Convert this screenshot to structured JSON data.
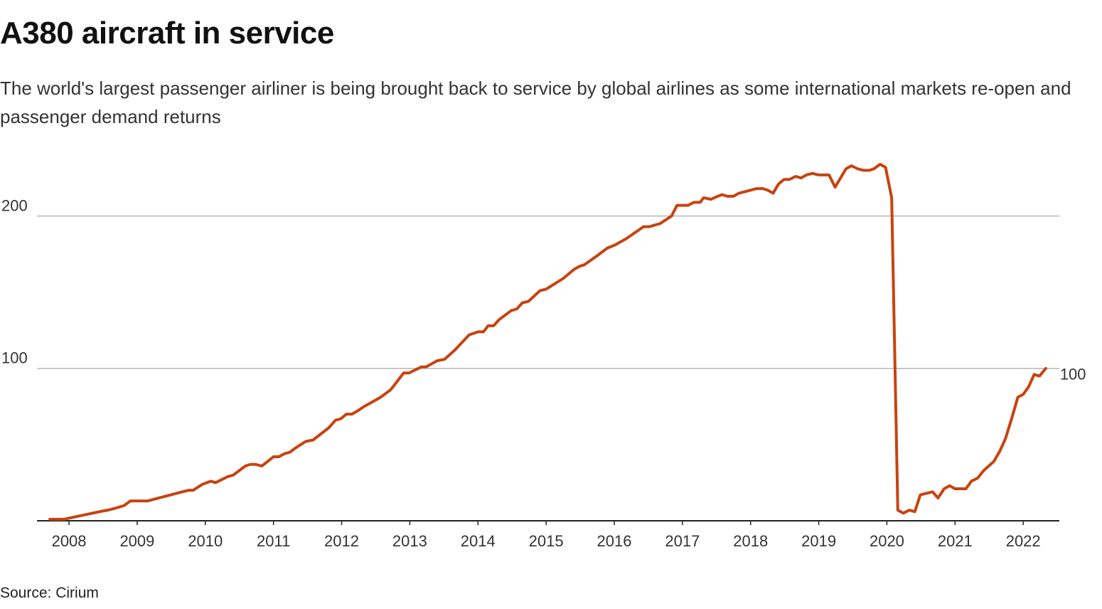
{
  "chart_data": {
    "type": "line",
    "title": "A380 aircraft in service",
    "subtitle": "The world's largest passenger airliner is being brought back to service by global airlines as some international markets re-open and passenger demand returns",
    "source": "Source: Cirium",
    "color": "#c8420f",
    "grid": true,
    "xlim": [
      2007.53,
      2022.53
    ],
    "xticks": [
      2008,
      2009,
      2010,
      2011,
      2012,
      2013,
      2014,
      2015,
      2016,
      2017,
      2018,
      2019,
      2020,
      2021,
      2022
    ],
    "ylim": [
      0,
      240
    ],
    "yticks": [
      100,
      200
    ],
    "x": [
      2007.72,
      2007.93,
      2008.03,
      2008.24,
      2008.45,
      2008.57,
      2008.66,
      2008.81,
      2008.9,
      2009.15,
      2009.75,
      2009.82,
      2009.96,
      2010.08,
      2010.15,
      2010.33,
      2010.41,
      2010.59,
      2010.66,
      2010.74,
      2010.83,
      2011.0,
      2011.08,
      2011.16,
      2011.24,
      2011.33,
      2011.47,
      2011.58,
      2011.81,
      2011.91,
      2011.99,
      2012.07,
      2012.15,
      2012.23,
      2012.33,
      2012.57,
      2012.72,
      2012.91,
      2012.99,
      2013.17,
      2013.24,
      2013.4,
      2013.51,
      2013.66,
      2013.87,
      2014.0,
      2014.08,
      2014.15,
      2014.23,
      2014.31,
      2014.49,
      2014.57,
      2014.65,
      2014.74,
      2014.91,
      2015.0,
      2015.25,
      2015.41,
      2015.49,
      2015.56,
      2015.75,
      2015.9,
      2016.01,
      2016.17,
      2016.43,
      2016.51,
      2016.67,
      2016.84,
      2016.92,
      2017.08,
      2017.17,
      2017.26,
      2017.31,
      2017.42,
      2017.52,
      2017.58,
      2017.66,
      2017.75,
      2017.83,
      2018.09,
      2018.18,
      2018.25,
      2018.33,
      2018.41,
      2018.49,
      2018.57,
      2018.66,
      2018.74,
      2018.82,
      2018.91,
      2018.99,
      2019.15,
      2019.24,
      2019.4,
      2019.48,
      2019.57,
      2019.66,
      2019.74,
      2019.81,
      2019.9,
      2019.98,
      2020.07,
      2020.16,
      2020.24,
      2020.33,
      2020.41,
      2020.49,
      2020.67,
      2020.75,
      2020.84,
      2020.92,
      2021.0,
      2021.16,
      2021.24,
      2021.33,
      2021.42,
      2021.57,
      2021.66,
      2021.74,
      2021.83,
      2021.92,
      2022.0,
      2022.08,
      2022.16,
      2022.24,
      2022.33
    ],
    "values": [
      1,
      1,
      2,
      4,
      6,
      7,
      8,
      10,
      13,
      13,
      20,
      20,
      24,
      26,
      25,
      29,
      30,
      36,
      37,
      37,
      36,
      42,
      42,
      44,
      45,
      48,
      52,
      53,
      61,
      66,
      67,
      70,
      70,
      72,
      75,
      81,
      86,
      97,
      97,
      101,
      101,
      105,
      106,
      112,
      122,
      124,
      124,
      128,
      128,
      132,
      138,
      139,
      143,
      144,
      151,
      152,
      159,
      165,
      167,
      168,
      174,
      179,
      181,
      185,
      193,
      193,
      195,
      200,
      207,
      207,
      209,
      209,
      212,
      211,
      213,
      214,
      213,
      213,
      215,
      218,
      218,
      217,
      215,
      221,
      224,
      224,
      226,
      225,
      227,
      228,
      227,
      227,
      219,
      231,
      233,
      231,
      230,
      230,
      231,
      234,
      232,
      212,
      7,
      5,
      7,
      6,
      17,
      19,
      15,
      21,
      23,
      21,
      21,
      26,
      28,
      33,
      39,
      46,
      54,
      67,
      81,
      83,
      88,
      96,
      95,
      100
    ]
  }
}
